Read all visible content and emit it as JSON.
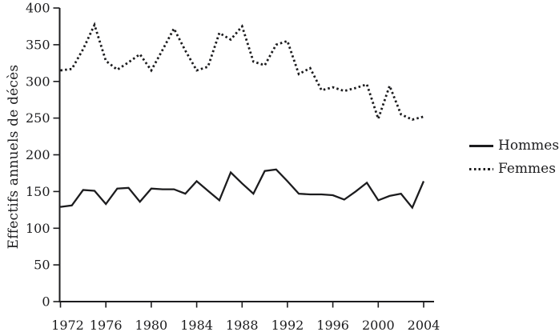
{
  "colors": {
    "ink": "#1c1c1e",
    "background": "#ffffff"
  },
  "legend": {
    "items": [
      {
        "label": "Hommes",
        "style": "solid"
      },
      {
        "label": "Femmes",
        "style": "dotted"
      }
    ]
  },
  "chart_data": {
    "type": "line",
    "title": "",
    "xlabel": "",
    "ylabel": "Effectifs annuels de décès",
    "ylim": [
      0,
      400
    ],
    "yticks": [
      0,
      50,
      100,
      150,
      200,
      250,
      300,
      350,
      400
    ],
    "xticks": [
      1972,
      1976,
      1980,
      1984,
      1988,
      1992,
      1996,
      2000,
      2004
    ],
    "xlim": [
      1972,
      2004
    ],
    "grid": false,
    "legend_position": "right",
    "x": [
      1972,
      1973,
      1974,
      1975,
      1976,
      1977,
      1978,
      1979,
      1980,
      1981,
      1982,
      1983,
      1984,
      1985,
      1986,
      1987,
      1988,
      1989,
      1990,
      1991,
      1992,
      1993,
      1994,
      1995,
      1996,
      1997,
      1998,
      1999,
      2000,
      2001,
      2002,
      2003,
      2004
    ],
    "series": [
      {
        "name": "Hommes",
        "style": "solid",
        "values": [
          129,
          131,
          152,
          151,
          133,
          154,
          155,
          136,
          154,
          153,
          153,
          147,
          164,
          151,
          138,
          176,
          161,
          147,
          178,
          180,
          164,
          147,
          146,
          146,
          145,
          139,
          150,
          162,
          138,
          144,
          147,
          128,
          164
        ]
      },
      {
        "name": "Femmes",
        "style": "dotted",
        "values": [
          315,
          317,
          344,
          377,
          328,
          316,
          326,
          337,
          315,
          343,
          372,
          342,
          315,
          320,
          366,
          357,
          375,
          327,
          322,
          350,
          355,
          310,
          318,
          288,
          292,
          287,
          291,
          296,
          249,
          294,
          255,
          248,
          252
        ]
      }
    ]
  }
}
